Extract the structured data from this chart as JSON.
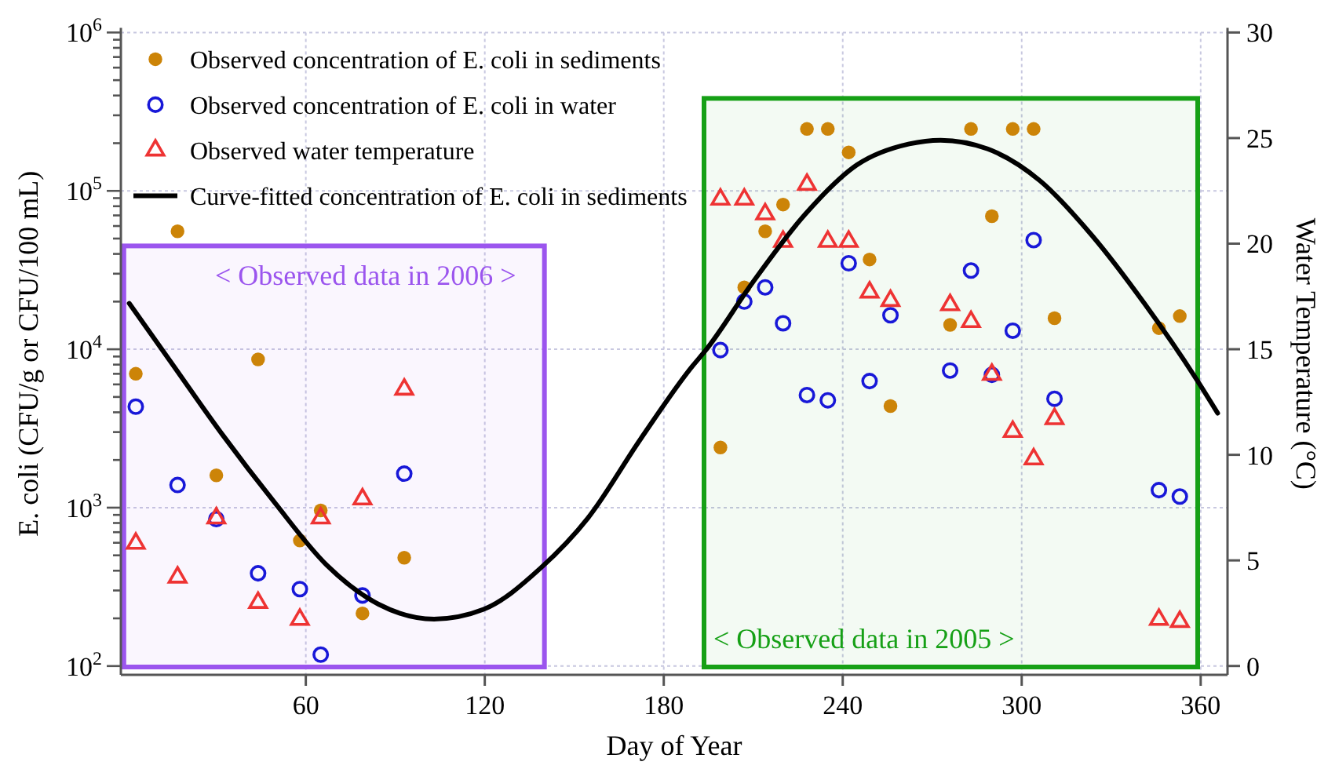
{
  "chart_data": {
    "type": "scatter",
    "xlabel": "Day of Year",
    "ylabel": "E. coli (CFU/g or CFU/100 mL)",
    "y2label": "Water Temperature (°C)",
    "xlim": [
      -2,
      369
    ],
    "xticks": [
      60,
      120,
      180,
      240,
      300,
      360
    ],
    "ylim": [
      88,
      1000000
    ],
    "log": "y",
    "yticks": [
      {
        "value": 100,
        "label": "10$^{2}$"
      },
      {
        "value": 200,
        "label": null
      },
      {
        "value": 300,
        "label": null
      },
      {
        "value": 400,
        "label": null
      },
      {
        "value": 500,
        "label": null
      },
      {
        "value": 600,
        "label": null
      },
      {
        "value": 700,
        "label": null
      },
      {
        "value": 800,
        "label": null
      },
      {
        "value": 900,
        "label": null
      },
      {
        "value": 1000,
        "label": "10$^{3}$"
      },
      {
        "value": 2000,
        "label": null
      },
      {
        "value": 3000,
        "label": null
      },
      {
        "value": 4000,
        "label": null
      },
      {
        "value": 5000,
        "label": null
      },
      {
        "value": 6000,
        "label": null
      },
      {
        "value": 7000,
        "label": null
      },
      {
        "value": 8000,
        "label": null
      },
      {
        "value": 9000,
        "label": null
      },
      {
        "value": 10000,
        "label": "10$^{4}$"
      },
      {
        "value": 20000,
        "label": null
      },
      {
        "value": 30000,
        "label": null
      },
      {
        "value": 40000,
        "label": null
      },
      {
        "value": 50000,
        "label": null
      },
      {
        "value": 60000,
        "label": null
      },
      {
        "value": 70000,
        "label": null
      },
      {
        "value": 80000,
        "label": null
      },
      {
        "value": 90000,
        "label": null
      },
      {
        "value": 100000,
        "label": "10$^{5}$"
      },
      {
        "value": 200000,
        "label": null
      },
      {
        "value": 300000,
        "label": null
      },
      {
        "value": 400000,
        "label": null
      },
      {
        "value": 500000,
        "label": null
      },
      {
        "value": 600000,
        "label": null
      },
      {
        "value": 700000,
        "label": null
      },
      {
        "value": 800000,
        "label": null
      },
      {
        "value": 900000,
        "label": null
      },
      {
        "value": 1000000,
        "label": "10$^{6}$"
      }
    ],
    "y2lim": [
      -0.42,
      30
    ],
    "y2ticks": [
      0,
      5,
      10,
      15,
      20,
      25,
      30
    ],
    "grid": true,
    "legend": "top left",
    "series": [
      {
        "name": "Observed concentration of E. coli in sediments",
        "marker": "circle",
        "color": "#cc8408",
        "x": [
          3,
          17,
          30,
          44,
          58,
          65,
          79,
          93,
          199,
          207,
          214,
          220,
          228,
          235,
          242,
          249,
          256,
          276,
          283,
          290,
          297,
          304,
          311,
          346,
          353
        ],
        "values": [
          7000,
          55600,
          1600,
          8630,
          620,
          960,
          215,
          483,
          2400,
          24600,
          55600,
          82000,
          246000,
          246000,
          175000,
          36900,
          4380,
          14250,
          246000,
          69200,
          246000,
          246000,
          15700,
          13600,
          16200
        ]
      },
      {
        "name": "Observed concentration of E. coli in water",
        "marker": "circle",
        "color": "#1818d8",
        "x": [
          3,
          17,
          30,
          44,
          58,
          65,
          79,
          93,
          199,
          207,
          214,
          220,
          228,
          235,
          242,
          249,
          256,
          276,
          283,
          290,
          297,
          304,
          311,
          346,
          353
        ],
        "values": [
          4340,
          1390,
          847,
          385,
          306,
          118,
          279,
          1640,
          9880,
          20000,
          24600,
          14600,
          5140,
          4760,
          34900,
          6300,
          16400,
          7340,
          31400,
          6900,
          13100,
          48900,
          4870,
          1290,
          1175
        ]
      },
      {
        "name": "Observed water temperature",
        "marker": "triangle",
        "axis": "y2",
        "color": "#ee3333",
        "x": [
          3,
          17,
          30,
          44,
          58,
          65,
          79,
          93,
          199,
          207,
          214,
          220,
          228,
          235,
          242,
          249,
          256,
          276,
          283,
          290,
          297,
          304,
          311,
          346,
          353
        ],
        "values": [
          5.8,
          4.2,
          7.0,
          3.0,
          2.2,
          7.0,
          7.9,
          13.1,
          22.1,
          22.1,
          21.4,
          20.1,
          22.8,
          20.1,
          20.1,
          17.7,
          17.3,
          17.1,
          16.3,
          13.8,
          11.1,
          9.8,
          11.7,
          2.2,
          2.1
        ]
      },
      {
        "name": "Curve-fitted concentration of E. coli in sediments",
        "type": "line",
        "marker": "none",
        "line_style": "solid",
        "color": "#000000",
        "x": [
          0.8,
          14.5,
          32,
          49.5,
          67,
          84.5,
          103,
          119.6,
          138.8,
          154.6,
          172.1,
          189.6,
          194,
          209.8,
          227.3,
          244.8,
          262.3,
          272.8,
          288.6,
          306.1,
          323.6,
          341.1,
          358.6,
          365.7
        ],
        "values": [
          19500,
          8430,
          2900,
          1080,
          434,
          245,
          198,
          228,
          417,
          861,
          2690,
          7820,
          9820,
          26400,
          70800,
          146000,
          198000,
          209000,
          184000,
          116000,
          52200,
          19500,
          6460,
          3950
        ]
      }
    ],
    "bands": [
      {
        "axis": "x",
        "from": -1,
        "to": 140,
        "label": "< Observed data in 2006 >",
        "color": "#9b55ee"
      },
      {
        "axis": "x",
        "from": 193.5,
        "to": 359,
        "label": "< Observed data in 2005 >",
        "color": "#16a016"
      }
    ]
  }
}
